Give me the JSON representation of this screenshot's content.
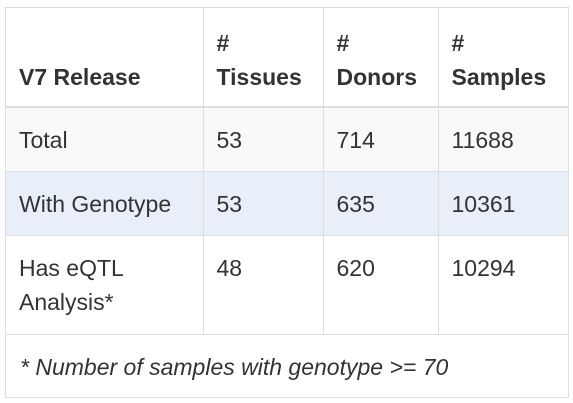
{
  "table": {
    "headers": [
      "V7 Release",
      "#\nTissues",
      "#\nDonors",
      "#\nSamples"
    ],
    "rows": [
      [
        "Total",
        "53",
        "714",
        "11688"
      ],
      [
        "With Genotype",
        "53",
        "635",
        "10361"
      ],
      [
        "Has eQTL Analysis*",
        "48",
        "620",
        "10294"
      ]
    ],
    "footnote": "* Number of samples with genotype >= 70"
  }
}
